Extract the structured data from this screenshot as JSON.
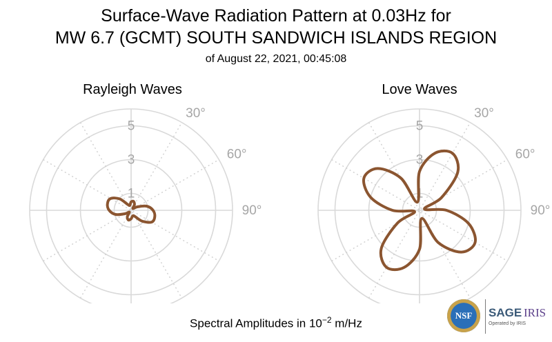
{
  "title_line1": "Surface-Wave Radiation Pattern at 0.03Hz for",
  "title_line2": "MW 6.7 (GCMT) SOUTH SANDWICH ISLANDS REGION",
  "title_line3": "of August 22, 2021, 00:45:08",
  "footer": {
    "prefix": "Spectral Amplitudes in 10",
    "exponent": "−2",
    "suffix": " m/Hz"
  },
  "logos": {
    "nsf": "NSF",
    "sage": "SAGE",
    "iris": "IRIS",
    "operated": "Operated by IRIS"
  },
  "chart_data": [
    {
      "type": "polar",
      "title": "Rayleigh Waves",
      "radial_ticks": [
        "1",
        "3",
        "5"
      ],
      "angle_ticks": [
        "30°",
        "60°",
        "90°"
      ],
      "rlim": [
        0,
        6
      ],
      "color": "#8b5530",
      "angle_deg": [
        0,
        15,
        30,
        45,
        60,
        75,
        90,
        105,
        120,
        135,
        150,
        165,
        180,
        195,
        210,
        225,
        240,
        255,
        270,
        285,
        300,
        315,
        330,
        345,
        360
      ],
      "r": [
        0.5,
        0.55,
        0.4,
        0.15,
        0.4,
        0.95,
        1.3,
        1.45,
        1.4,
        0.9,
        0.4,
        0.35,
        0.5,
        0.6,
        0.45,
        0.15,
        0.4,
        0.95,
        1.3,
        1.45,
        1.4,
        0.95,
        0.4,
        0.3,
        0.5
      ]
    },
    {
      "type": "polar",
      "title": "Love Waves",
      "radial_ticks": [
        "1",
        "3",
        "5"
      ],
      "angle_ticks": [
        "30°",
        "60°",
        "90°"
      ],
      "rlim": [
        0,
        6
      ],
      "color": "#8b5530",
      "angle_deg": [
        0,
        15,
        30,
        45,
        60,
        75,
        90,
        105,
        120,
        135,
        150,
        165,
        180,
        195,
        210,
        225,
        240,
        255,
        270,
        285,
        300,
        315,
        330,
        345,
        360
      ],
      "r": [
        2.3,
        3.5,
        3.9,
        3.2,
        1.5,
        0.3,
        1.6,
        3.0,
        3.8,
        3.5,
        2.2,
        0.5,
        2.3,
        3.5,
        3.9,
        3.2,
        1.5,
        0.3,
        1.6,
        3.0,
        3.8,
        3.5,
        2.2,
        0.5,
        2.3
      ]
    }
  ]
}
